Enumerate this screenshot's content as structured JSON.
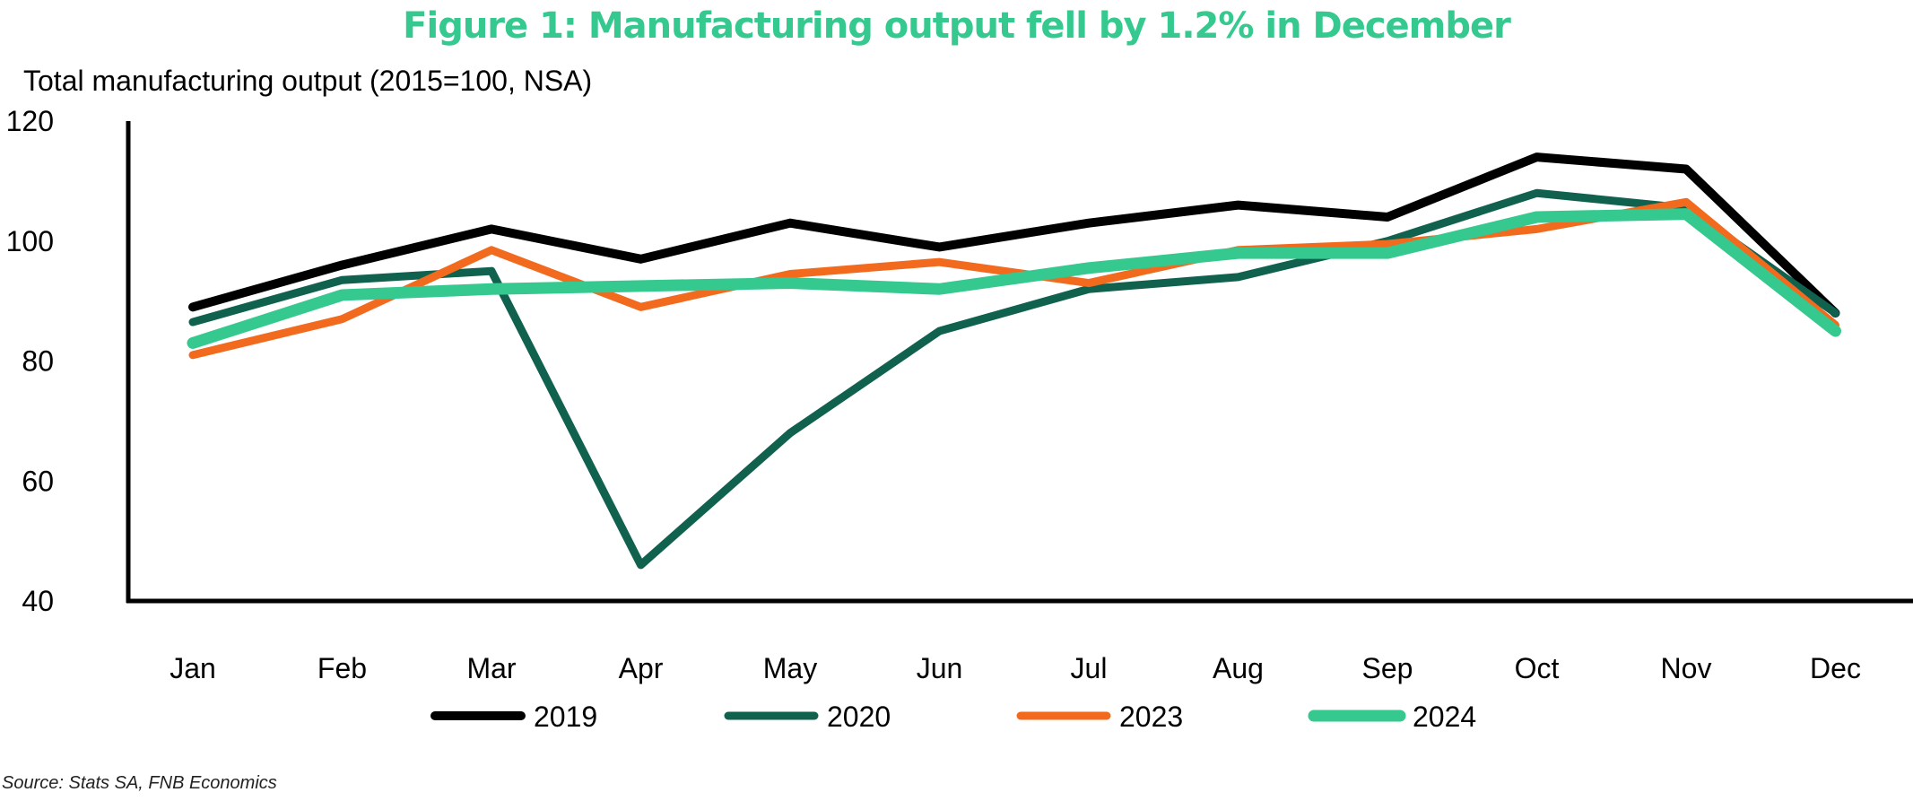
{
  "chart_data": {
    "type": "line",
    "title": "Figure 1: Manufacturing output fell by 1.2% in December",
    "ylabel": "Total manufacturing output (2015=100, NSA)",
    "xlabel": "",
    "categories": [
      "Jan",
      "Feb",
      "Mar",
      "Apr",
      "May",
      "Jun",
      "Jul",
      "Aug",
      "Sep",
      "Oct",
      "Nov",
      "Dec"
    ],
    "ylim": [
      40,
      120
    ],
    "yticks": [
      "40",
      "60",
      "80",
      "100",
      "120"
    ],
    "grid": false,
    "legend_position": "bottom",
    "series": [
      {
        "name": "2019",
        "color": "#000000",
        "values": [
          89,
          96,
          102,
          97,
          103,
          99,
          103,
          106,
          104,
          114,
          112,
          88
        ]
      },
      {
        "name": "2020",
        "color": "#11614f",
        "values": [
          86.5,
          93.5,
          95,
          46,
          68,
          85,
          92,
          94,
          100,
          108,
          105.5,
          88
        ]
      },
      {
        "name": "2023",
        "color": "#f26a1e",
        "values": [
          81,
          87,
          98.5,
          89,
          94.5,
          96.5,
          93,
          98.5,
          99.5,
          102,
          106.5,
          86
        ]
      },
      {
        "name": "2024",
        "color": "#35c98f",
        "values": [
          83,
          91,
          92,
          92.5,
          93,
          92,
          95.5,
          98,
          98,
          104,
          104.5,
          85
        ]
      }
    ],
    "source": "Source: Stats SA, FNB Economics"
  },
  "colors": {
    "title": "#35c98f",
    "axis": "#000000"
  }
}
